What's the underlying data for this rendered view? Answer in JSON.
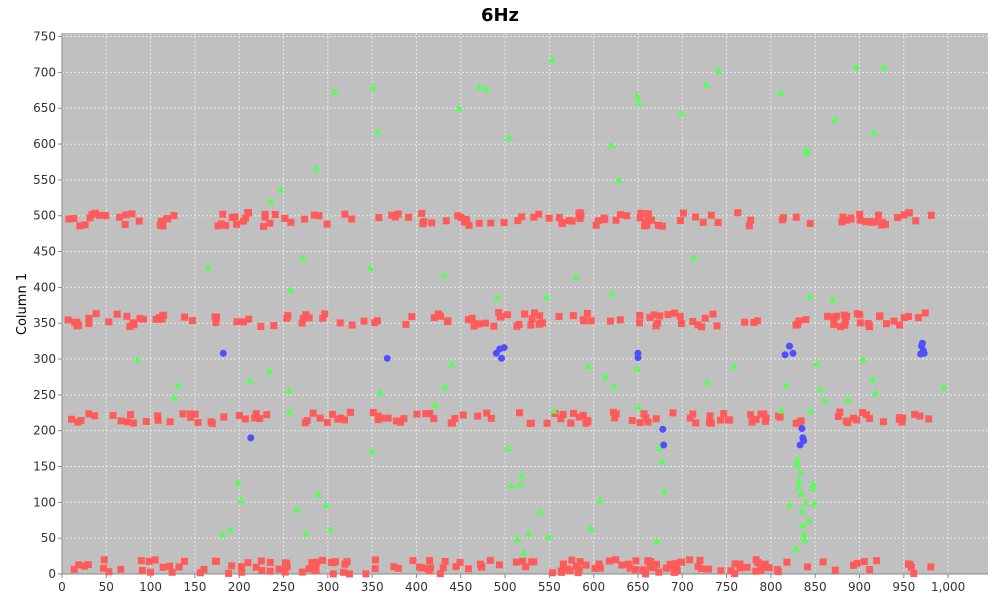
{
  "chart_data": {
    "type": "scatter",
    "title": "6Hz",
    "xlabel": "",
    "ylabel": "Column 1",
    "xlim": [
      0,
      1045
    ],
    "ylim": [
      0,
      755
    ],
    "x_ticks": [
      0,
      50,
      100,
      150,
      200,
      250,
      300,
      350,
      400,
      450,
      500,
      550,
      600,
      650,
      700,
      750,
      800,
      850,
      900,
      950,
      1000
    ],
    "x_tick_labels": [
      "0",
      "50",
      "100",
      "150",
      "200",
      "250",
      "300",
      "350",
      "400",
      "450",
      "500",
      "550",
      "600",
      "650",
      "700",
      "750",
      "800",
      "850",
      "900",
      "950",
      "1,000"
    ],
    "y_ticks": [
      0,
      50,
      100,
      150,
      200,
      250,
      300,
      350,
      400,
      450,
      500,
      550,
      600,
      650,
      700,
      750
    ],
    "y_tick_labels": [
      "0",
      "50",
      "100",
      "150",
      "200",
      "250",
      "300",
      "350",
      "400",
      "450",
      "500",
      "550",
      "600",
      "650",
      "700",
      "750"
    ],
    "grid": true,
    "colors": {
      "plot_bg": "#c0c0c0",
      "grid": "#e8e8e8",
      "red": "#ff5b5b",
      "green": "#55ff55",
      "blue": "#4f4fff"
    },
    "series": [
      {
        "marker": "square",
        "color": "#ff5b5b",
        "bands": [
          {
            "center": 10,
            "spread": 10,
            "x_start": 5,
            "x_end": 985,
            "count": 160
          },
          {
            "center": 218,
            "spread": 8,
            "x_start": 5,
            "x_end": 985,
            "count": 120
          },
          {
            "center": 355,
            "spread": 10,
            "x_start": 5,
            "x_end": 985,
            "count": 130
          },
          {
            "center": 495,
            "spread": 10,
            "x_start": 5,
            "x_end": 985,
            "count": 130
          }
        ]
      },
      {
        "marker": "circle",
        "color": "#4f4fff",
        "points": [
          [
            182,
            308
          ],
          [
            213,
            190
          ],
          [
            367,
            301
          ],
          [
            490,
            308
          ],
          [
            494,
            314
          ],
          [
            496,
            301
          ],
          [
            499,
            316
          ],
          [
            650,
            308
          ],
          [
            650,
            302
          ],
          [
            678,
            202
          ],
          [
            679,
            180
          ],
          [
            816,
            306
          ],
          [
            821,
            318
          ],
          [
            825,
            308
          ],
          [
            833,
            180
          ],
          [
            835,
            203
          ],
          [
            836,
            190
          ],
          [
            837,
            186
          ],
          [
            969,
            307
          ],
          [
            970,
            318
          ],
          [
            971,
            322
          ],
          [
            972,
            312
          ],
          [
            973,
            308
          ]
        ]
      },
      {
        "marker": "triangle",
        "color": "#55ff55",
        "points": [
          [
            85,
            299
          ],
          [
            127,
            246
          ],
          [
            131,
            263
          ],
          [
            165,
            429
          ],
          [
            181,
            55
          ],
          [
            190,
            62
          ],
          [
            199,
            127
          ],
          [
            202,
            103
          ],
          [
            212,
            270
          ],
          [
            234,
            283
          ],
          [
            236,
            520
          ],
          [
            247,
            536
          ],
          [
            256,
            256
          ],
          [
            257,
            226
          ],
          [
            258,
            396
          ],
          [
            265,
            90
          ],
          [
            272,
            441
          ],
          [
            275,
            57
          ],
          [
            287,
            566
          ],
          [
            289,
            112
          ],
          [
            298,
            96
          ],
          [
            303,
            62
          ],
          [
            308,
            673
          ],
          [
            348,
            427
          ],
          [
            350,
            171
          ],
          [
            351,
            679
          ],
          [
            356,
            617
          ],
          [
            359,
            253
          ],
          [
            421,
            236
          ],
          [
            431,
            417
          ],
          [
            432,
            261
          ],
          [
            440,
            293
          ],
          [
            448,
            650
          ],
          [
            471,
            680
          ],
          [
            479,
            677
          ],
          [
            491,
            386
          ],
          [
            503,
            176
          ],
          [
            504,
            609
          ],
          [
            507,
            123
          ],
          [
            514,
            49
          ],
          [
            517,
            125
          ],
          [
            519,
            137
          ],
          [
            521,
            30
          ],
          [
            527,
            57
          ],
          [
            539,
            87
          ],
          [
            547,
            386
          ],
          [
            549,
            52
          ],
          [
            553,
            718
          ],
          [
            555,
            228
          ],
          [
            580,
            415
          ],
          [
            594,
            290
          ],
          [
            597,
            64
          ],
          [
            607,
            103
          ],
          [
            613,
            276
          ],
          [
            620,
            598
          ],
          [
            621,
            391
          ],
          [
            623,
            262
          ],
          [
            628,
            550
          ],
          [
            649,
            287
          ],
          [
            649,
            667
          ],
          [
            651,
            657
          ],
          [
            651,
            233
          ],
          [
            671,
            46
          ],
          [
            674,
            176
          ],
          [
            677,
            157
          ],
          [
            680,
            116
          ],
          [
            699,
            643
          ],
          [
            713,
            441
          ],
          [
            727,
            683
          ],
          [
            728,
            267
          ],
          [
            741,
            703
          ],
          [
            759,
            290
          ],
          [
            811,
            672
          ],
          [
            812,
            228
          ],
          [
            817,
            263
          ],
          [
            821,
            97
          ],
          [
            828,
            36
          ],
          [
            829,
            153
          ],
          [
            830,
            160
          ],
          [
            831,
            122
          ],
          [
            832,
            130
          ],
          [
            833,
            142
          ],
          [
            834,
            112
          ],
          [
            835,
            88
          ],
          [
            836,
            68
          ],
          [
            837,
            55
          ],
          [
            838,
            48
          ],
          [
            839,
            100
          ],
          [
            840,
            592
          ],
          [
            841,
            588
          ],
          [
            843,
            75
          ],
          [
            844,
            387
          ],
          [
            845,
            228
          ],
          [
            847,
            120
          ],
          [
            848,
            126
          ],
          [
            849,
            98
          ],
          [
            852,
            294
          ],
          [
            856,
            258
          ],
          [
            861,
            243
          ],
          [
            870,
            382
          ],
          [
            872,
            634
          ],
          [
            887,
            243
          ],
          [
            896,
            708
          ],
          [
            904,
            299
          ],
          [
            915,
            272
          ],
          [
            916,
            616
          ],
          [
            918,
            253
          ],
          [
            928,
            707
          ],
          [
            995,
            260
          ]
        ]
      }
    ]
  }
}
